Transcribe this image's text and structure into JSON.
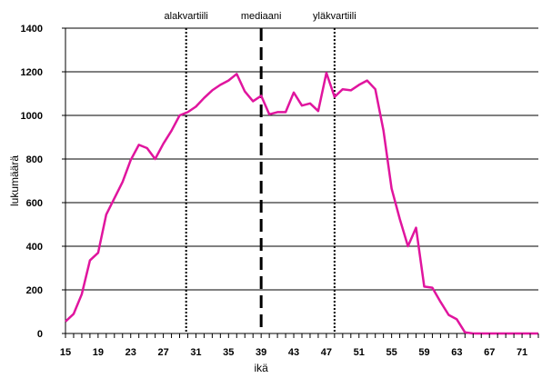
{
  "chart_data": {
    "type": "line",
    "xlabel": "ikä",
    "ylabel": "lukumäärä",
    "xlim": [
      15,
      73
    ],
    "ylim": [
      0,
      1400
    ],
    "yticks": [
      0,
      200,
      400,
      600,
      800,
      1000,
      1200,
      1400
    ],
    "xticks": [
      15,
      19,
      23,
      27,
      31,
      35,
      39,
      43,
      47,
      51,
      55,
      59,
      63,
      67,
      71
    ],
    "grid": "horizontal",
    "series_color": "#e0159e",
    "series": [
      {
        "x": [
          15,
          16,
          17,
          18,
          19,
          20,
          21,
          22,
          23,
          24,
          25,
          26,
          27,
          28,
          29,
          30,
          31,
          32,
          33,
          34,
          35,
          36,
          37,
          38,
          39,
          40,
          41,
          42,
          43,
          44,
          45,
          46,
          47,
          48,
          49,
          50,
          51,
          52,
          53,
          54,
          55,
          56,
          57,
          58,
          59,
          60,
          61,
          62,
          63,
          64,
          65,
          66,
          67,
          68,
          69,
          70,
          71,
          72,
          73
        ],
        "values": [
          55,
          90,
          180,
          335,
          370,
          545,
          620,
          695,
          795,
          865,
          850,
          800,
          870,
          930,
          1000,
          1015,
          1040,
          1080,
          1115,
          1140,
          1160,
          1190,
          1110,
          1065,
          1090,
          1005,
          1015,
          1015,
          1105,
          1045,
          1055,
          1020,
          1195,
          1085,
          1120,
          1115,
          1140,
          1160,
          1120,
          930,
          665,
          525,
          400,
          485,
          215,
          210,
          145,
          85,
          65,
          5,
          0,
          0,
          0,
          0,
          0,
          0,
          0,
          0,
          0
        ]
      }
    ],
    "markers": [
      {
        "label": "alakvartiili",
        "x": 29.8,
        "style": "dotted"
      },
      {
        "label": "mediaani",
        "x": 39,
        "style": "dashed"
      },
      {
        "label": "yläkvartiili",
        "x": 48,
        "style": "dotted"
      }
    ]
  }
}
